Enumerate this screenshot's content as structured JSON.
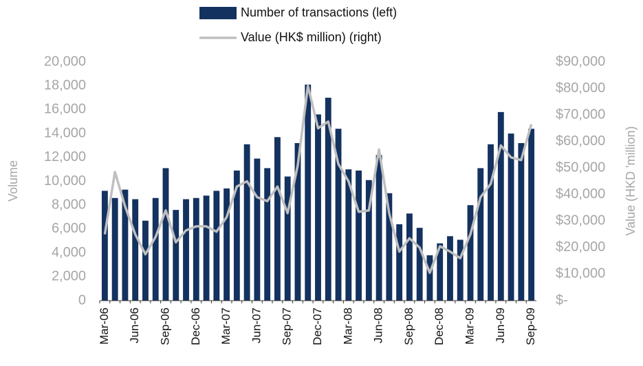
{
  "chart_data": {
    "type": "bar-line",
    "categories": [
      "Mar-06",
      null,
      null,
      "Jun-06",
      null,
      null,
      "Sep-06",
      null,
      null,
      "Dec-06",
      null,
      null,
      "Mar-07",
      null,
      null,
      "Jun-07",
      null,
      null,
      "Sep-07",
      null,
      null,
      "Dec-07",
      null,
      null,
      "Mar-08",
      null,
      null,
      "Jun-08",
      null,
      null,
      "Sep-08",
      null,
      null,
      "Dec-08",
      null,
      null,
      "Mar-09",
      null,
      null,
      "Jun-09",
      null,
      null,
      "Sep-09"
    ],
    "series": [
      {
        "name": "Number of transactions (left)",
        "color": "#14325f",
        "type": "bar",
        "values": [
          9200,
          8600,
          9300,
          8500,
          6700,
          8600,
          11100,
          7600,
          8500,
          8600,
          8800,
          9200,
          9400,
          10900,
          13100,
          11900,
          11100,
          13700,
          10400,
          13200,
          18100,
          15600,
          17000,
          14400,
          11000,
          10900,
          10100,
          12200,
          9000,
          6400,
          7300,
          6100,
          3800,
          4800,
          5400,
          5100,
          8000,
          11100,
          13100,
          15800,
          14000,
          13200,
          14400
        ]
      },
      {
        "name": "Value (HK$ million) (right)",
        "color": "#bfbfbf",
        "type": "line",
        "axis": "y2",
        "values": [
          25000,
          48500,
          35500,
          25000,
          17500,
          24000,
          34000,
          22000,
          26500,
          28000,
          28000,
          26000,
          31500,
          43000,
          45000,
          39000,
          37500,
          43000,
          33000,
          51000,
          81000,
          65000,
          67500,
          51500,
          45000,
          33500,
          34000,
          57000,
          33000,
          18500,
          23500,
          20000,
          10500,
          20500,
          18500,
          16000,
          25000,
          39000,
          44000,
          58500,
          54000,
          53000,
          66500
        ]
      }
    ],
    "ylabel": "Volume",
    "y2label": "Value (HKD 'million)",
    "ylim": [
      0,
      20000
    ],
    "yticks": [
      0,
      {
        "value": 2000,
        "label": "2,000"
      },
      {
        "value": 4000,
        "label": "4,000"
      },
      {
        "value": 6000,
        "label": "6,000"
      },
      {
        "value": 8000,
        "label": "8,000"
      },
      {
        "value": 10000,
        "label": "10,000"
      },
      {
        "value": 12000,
        "label": "12,000"
      },
      {
        "value": 14000,
        "label": "14,000"
      },
      {
        "value": 16000,
        "label": "16,000"
      },
      {
        "value": 18000,
        "label": "18,000"
      },
      {
        "value": 20000,
        "label": "20,000"
      }
    ],
    "y2lim": [
      0,
      90000
    ],
    "y2ticks": [
      {
        "value": 0,
        "label": "$-"
      },
      {
        "value": 10000,
        "label": "$10,000"
      },
      {
        "value": 20000,
        "label": "$20,000"
      },
      {
        "value": 30000,
        "label": "$30,000"
      },
      {
        "value": 40000,
        "label": "$40,000"
      },
      {
        "value": 50000,
        "label": "$50,000"
      },
      {
        "value": 60000,
        "label": "$60,000"
      },
      {
        "value": 70000,
        "label": "$70,000"
      },
      {
        "value": 80000,
        "label": "$80,000"
      },
      {
        "value": 90000,
        "label": "$90,000"
      }
    ],
    "legend": "top"
  }
}
